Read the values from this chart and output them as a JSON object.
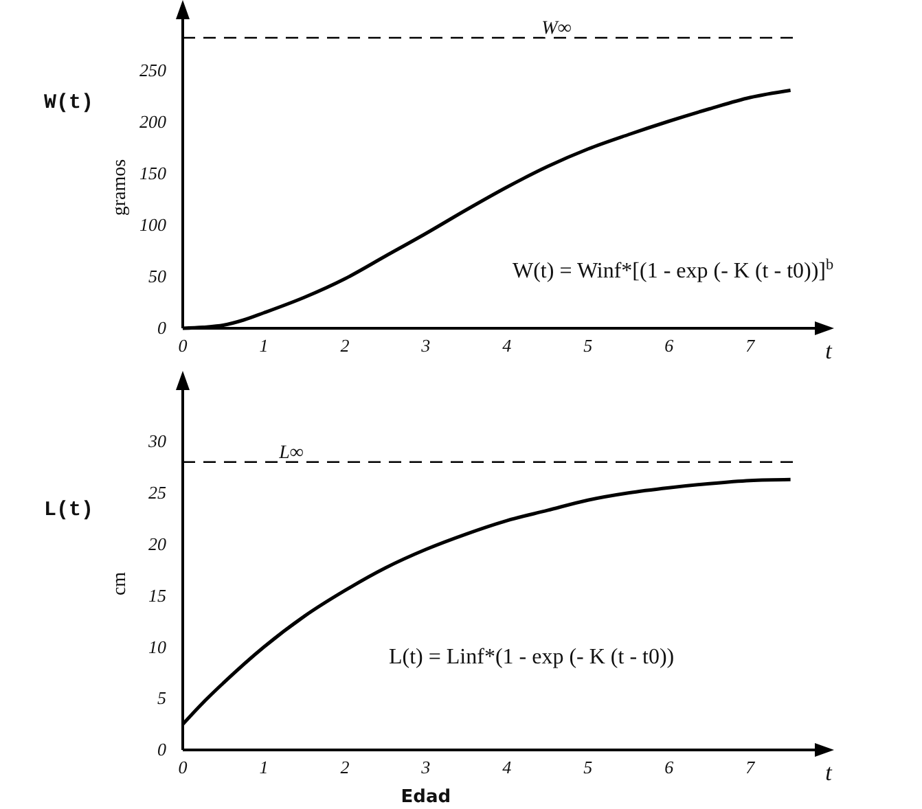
{
  "chart_data": [
    {
      "type": "line",
      "title": "W(t)",
      "ylabel": "gramos",
      "xlabel": "t",
      "xlim": [
        0,
        7.8
      ],
      "xticks": [
        0,
        1,
        2,
        3,
        4,
        5,
        6,
        7
      ],
      "ylim": [
        0,
        300
      ],
      "yticks": [
        0,
        50,
        100,
        150,
        200,
        250
      ],
      "grid": false,
      "marker": "none",
      "line_style": "solid",
      "x": [
        0,
        0.25,
        0.5,
        0.75,
        1,
        1.5,
        2,
        2.5,
        3,
        3.5,
        4,
        4.5,
        5,
        5.5,
        6,
        6.5,
        7,
        7.5
      ],
      "series": [
        {
          "color": "#000000",
          "values": [
            0,
            1,
            3,
            8,
            15,
            30,
            48,
            70,
            92,
            115,
            137,
            157,
            174,
            188,
            201,
            213,
            224,
            231
          ]
        }
      ],
      "ref_lines": [
        {
          "axis": "y",
          "value": 282,
          "label": "W∞",
          "line_style": "dashed",
          "color": "#000000"
        }
      ],
      "annotations": [
        "W(t) = Winf*[(1 -  exp (- K (t -  t0))]$^{b}$"
      ]
    },
    {
      "type": "line",
      "title": "L(t)",
      "ylabel": "cm",
      "xlabel": "t",
      "xlim": [
        0,
        7.8
      ],
      "xticks": [
        0,
        1,
        2,
        3,
        4,
        5,
        6,
        7
      ],
      "ylim": [
        0,
        35
      ],
      "yticks": [
        0,
        5,
        10,
        15,
        20,
        25,
        30
      ],
      "grid": false,
      "marker": "none",
      "line_style": "solid",
      "x": [
        0,
        0.25,
        0.5,
        1,
        1.5,
        2,
        2.5,
        3,
        3.5,
        4,
        4.5,
        5,
        5.5,
        6,
        6.5,
        7,
        7.5
      ],
      "series": [
        {
          "color": "#000000",
          "values": [
            2.5,
            4.6,
            6.5,
            10,
            13,
            15.5,
            17.7,
            19.5,
            21,
            22.3,
            23.3,
            24.3,
            25,
            25.5,
            25.9,
            26.2,
            26.3
          ]
        }
      ],
      "ref_lines": [
        {
          "axis": "y",
          "value": 28,
          "label": "L∞",
          "line_style": "dashed",
          "color": "#000000"
        }
      ],
      "annotations": [
        "L(t) = Linf*(1 -  exp (- K (t -  t0))",
        "Edad"
      ]
    }
  ]
}
